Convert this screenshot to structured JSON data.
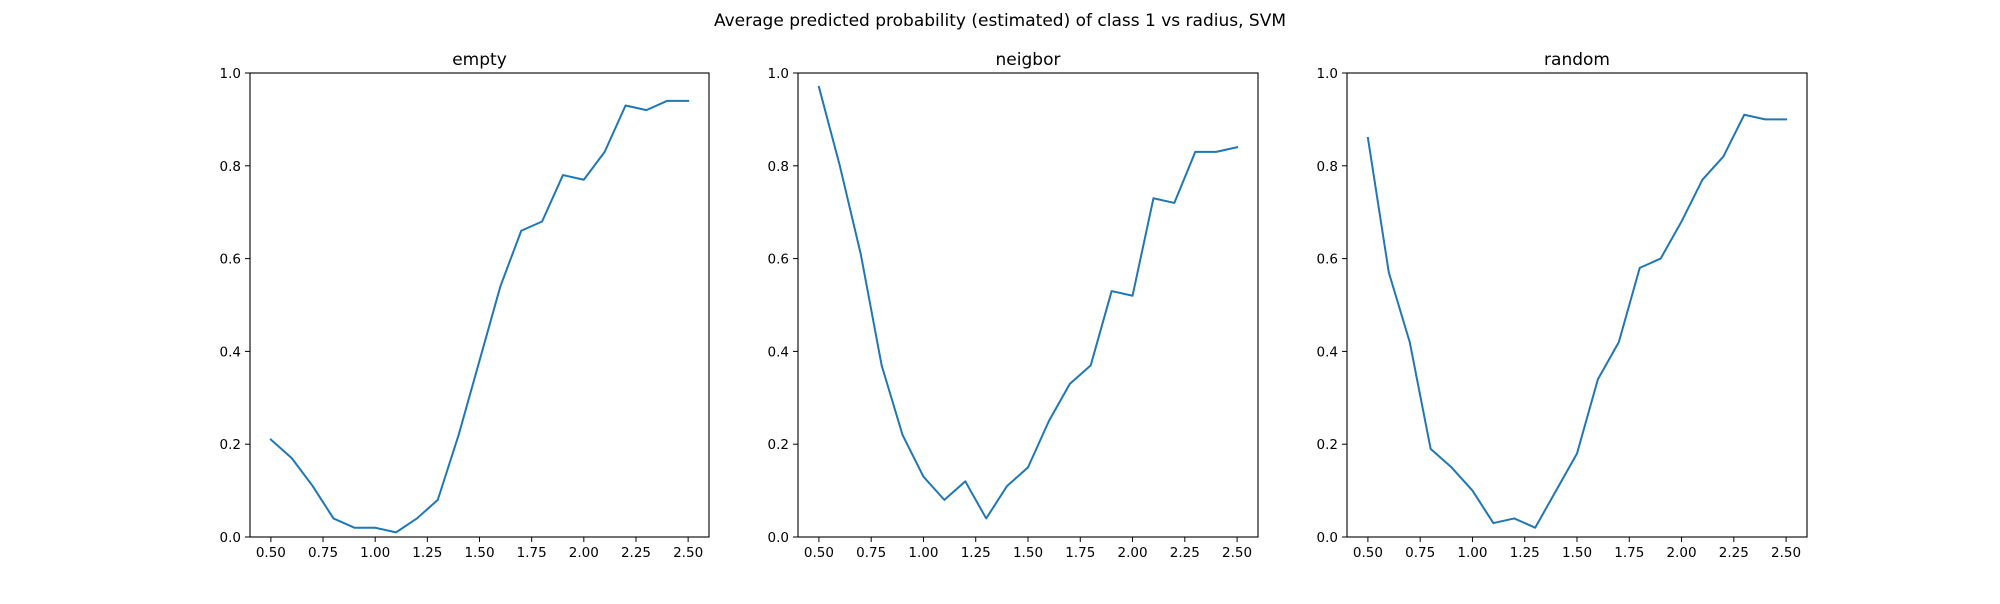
{
  "figure": {
    "title": "Average predicted probability (estimated) of class 1 vs radius, SVM"
  },
  "colors": {
    "line": "#1f77b4",
    "axes": "#000000",
    "background": "#ffffff"
  },
  "chart_data": [
    {
      "type": "line",
      "title": "empty",
      "xlabel": "",
      "ylabel": "",
      "xlim": [
        0.4,
        2.6
      ],
      "ylim": [
        0.0,
        1.0
      ],
      "grid": false,
      "x_ticks": [
        "0.50",
        "0.75",
        "1.00",
        "1.25",
        "1.50",
        "1.75",
        "2.00",
        "2.25",
        "2.50"
      ],
      "y_ticks": [
        "0.0",
        "0.2",
        "0.4",
        "0.6",
        "0.8",
        "1.0"
      ],
      "x": [
        0.5,
        0.6,
        0.7,
        0.8,
        0.9,
        1.0,
        1.1,
        1.2,
        1.3,
        1.4,
        1.5,
        1.6,
        1.7,
        1.8,
        1.9,
        2.0,
        2.1,
        2.2,
        2.3,
        2.4,
        2.5
      ],
      "series": [
        {
          "values": [
            0.21,
            0.17,
            0.11,
            0.04,
            0.02,
            0.02,
            0.01,
            0.04,
            0.08,
            0.22,
            0.38,
            0.54,
            0.66,
            0.68,
            0.78,
            0.77,
            0.83,
            0.93,
            0.92,
            0.94,
            0.94
          ]
        }
      ]
    },
    {
      "type": "line",
      "title": "neigbor",
      "xlabel": "",
      "ylabel": "",
      "xlim": [
        0.4,
        2.6
      ],
      "ylim": [
        0.0,
        1.0
      ],
      "grid": false,
      "x_ticks": [
        "0.50",
        "0.75",
        "1.00",
        "1.25",
        "1.50",
        "1.75",
        "2.00",
        "2.25",
        "2.50"
      ],
      "y_ticks": [
        "0.0",
        "0.2",
        "0.4",
        "0.6",
        "0.8",
        "1.0"
      ],
      "x": [
        0.5,
        0.6,
        0.7,
        0.8,
        0.9,
        1.0,
        1.1,
        1.2,
        1.3,
        1.4,
        1.5,
        1.6,
        1.7,
        1.8,
        1.9,
        2.0,
        2.1,
        2.2,
        2.3,
        2.4,
        2.5
      ],
      "series": [
        {
          "values": [
            0.97,
            0.8,
            0.61,
            0.37,
            0.22,
            0.13,
            0.08,
            0.12,
            0.04,
            0.11,
            0.15,
            0.25,
            0.33,
            0.37,
            0.53,
            0.52,
            0.73,
            0.72,
            0.83,
            0.83,
            0.84
          ]
        }
      ]
    },
    {
      "type": "line",
      "title": "random",
      "xlabel": "",
      "ylabel": "",
      "xlim": [
        0.4,
        2.6
      ],
      "ylim": [
        0.0,
        1.0
      ],
      "grid": false,
      "x_ticks": [
        "0.50",
        "0.75",
        "1.00",
        "1.25",
        "1.50",
        "1.75",
        "2.00",
        "2.25",
        "2.50"
      ],
      "y_ticks": [
        "0.0",
        "0.2",
        "0.4",
        "0.6",
        "0.8",
        "1.0"
      ],
      "x": [
        0.5,
        0.6,
        0.7,
        0.8,
        0.9,
        1.0,
        1.1,
        1.2,
        1.3,
        1.4,
        1.5,
        1.6,
        1.7,
        1.8,
        1.9,
        2.0,
        2.1,
        2.2,
        2.3,
        2.4,
        2.5
      ],
      "series": [
        {
          "values": [
            0.86,
            0.57,
            0.42,
            0.19,
            0.15,
            0.1,
            0.03,
            0.04,
            0.02,
            0.1,
            0.18,
            0.34,
            0.42,
            0.58,
            0.6,
            0.68,
            0.77,
            0.82,
            0.91,
            0.9,
            0.9
          ]
        }
      ]
    }
  ]
}
